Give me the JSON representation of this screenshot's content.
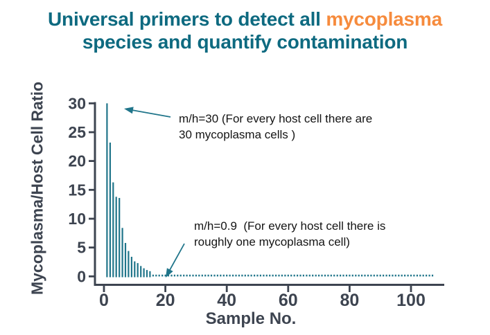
{
  "title": {
    "line1_prefix": "Universal primers to detect all ",
    "line1_highlight": "mycoplasma",
    "line2": "species and quantify contamination",
    "color": "#0e6a80",
    "highlight_color": "#f68b3d"
  },
  "chart_data": {
    "type": "bar",
    "title": "",
    "xlabel": "Sample No.",
    "ylabel": "Mycoplasma/Host Cell Ratio",
    "xlim": [
      0,
      110
    ],
    "ylim": [
      0,
      30
    ],
    "grid": false,
    "legend": null,
    "x_ticks": [
      "0",
      "20",
      "40",
      "60",
      "80",
      "100"
    ],
    "x_tick_values": [
      0,
      20,
      40,
      60,
      80,
      100
    ],
    "y_ticks": [
      "0",
      "5",
      "10",
      "15",
      "20",
      "25",
      "30"
    ],
    "y_tick_values": [
      0,
      5,
      10,
      15,
      20,
      25,
      30
    ],
    "bar_color": "#20758a",
    "axis_color": "#3d4450",
    "x": [
      1,
      2,
      3,
      4,
      5,
      6,
      7,
      8,
      9,
      10,
      11,
      12,
      13,
      14,
      15
    ],
    "values": [
      30,
      23.2,
      16.3,
      13.8,
      13.6,
      8.4,
      5.8,
      4.4,
      3.4,
      2.6,
      2.3,
      1.8,
      1.4,
      1.1,
      0.9
    ],
    "dotted_tail": {
      "start_sample": 16,
      "end_sample": 107,
      "value": 0.9,
      "style": "dotted baseline marks, one per sample"
    },
    "annotations": [
      {
        "line1": "m/h=30 (For every host cell there are",
        "line2": "30 mycoplasma cells )",
        "arrow": {
          "from": [
            246,
            169
          ],
          "to": [
            179,
            157
          ]
        }
      },
      {
        "line1": "m/h=0.9  (For every host cell there is",
        "line2": "roughly one mycoplasma cell)",
        "arrow": {
          "from": [
            266,
            352
          ],
          "to": [
            239,
            401
          ]
        }
      }
    ]
  }
}
